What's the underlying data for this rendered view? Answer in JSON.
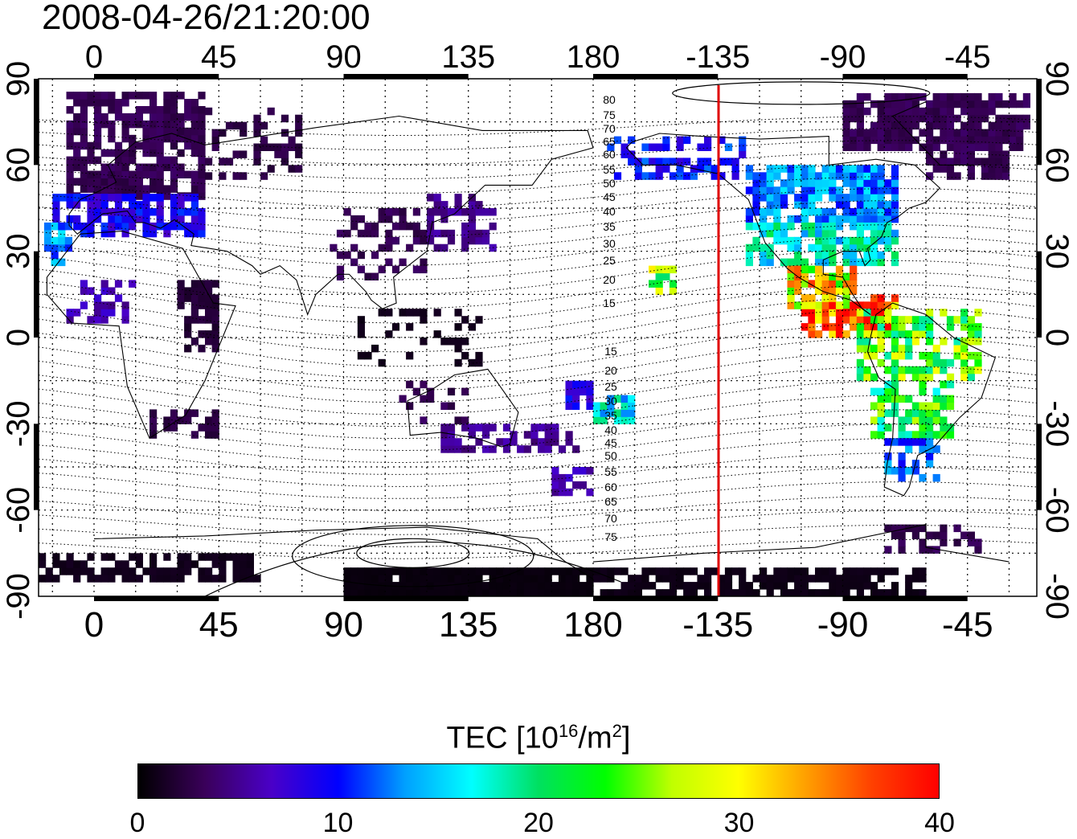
{
  "timestamp": "2008-04-26/21:20:00",
  "map": {
    "lon_ticks_top": [
      "0",
      "45",
      "90",
      "135",
      "180",
      "-135",
      "-90",
      "-45"
    ],
    "lon_ticks_bottom": [
      "0",
      "45",
      "90",
      "135",
      "180",
      "-135",
      "-90",
      "-45"
    ],
    "lat_ticks_left": [
      "90",
      "60",
      "30",
      "0",
      "-30",
      "-60",
      "-90"
    ],
    "lat_ticks_right": [
      "90",
      "60",
      "30",
      "0",
      "-30",
      "-60",
      "-90"
    ],
    "mlat_labels_north": [
      "80",
      "75",
      "70",
      "65",
      "60",
      "55",
      "50",
      "45",
      "40",
      "35",
      "30",
      "25",
      "20",
      "15"
    ],
    "mlat_labels_south": [
      "15",
      "20",
      "25",
      "30",
      "35",
      "40",
      "45",
      "50",
      "55",
      "60",
      "65",
      "70",
      "75"
    ],
    "terminator_color": "#e00000",
    "coastline_color": "#000000",
    "grid_style": "dotted"
  },
  "colorbar": {
    "title_prefix": "TEC  [10",
    "title_sup1": "16",
    "title_mid": "/m",
    "title_sup2": "2",
    "title_suffix": "]",
    "ticks": [
      "0",
      "10",
      "20",
      "30",
      "40"
    ],
    "colors": [
      "#000000",
      "#3a005a",
      "#4a00c8",
      "#0000ff",
      "#00a0ff",
      "#00ffff",
      "#00e060",
      "#00ff00",
      "#c0ff00",
      "#ffff00",
      "#ffa000",
      "#ff4000",
      "#ff0000"
    ]
  }
}
